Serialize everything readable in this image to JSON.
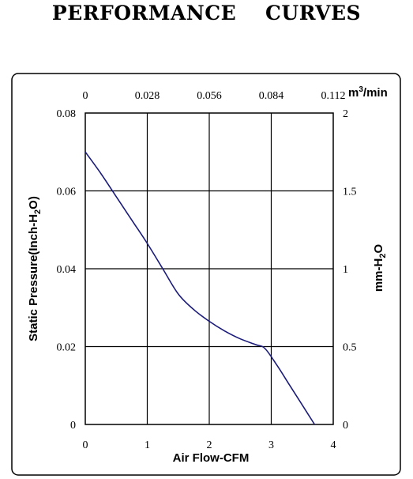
{
  "title": "PERFORMANCE    CURVES",
  "chart_data": {
    "type": "line",
    "xlabel": "Air Flow-CFM",
    "ylabel_left": "Static Pressure(Inch-H2O)",
    "ylabel_left_main": "Static Pressure(Inch-H",
    "ylabel_left_sub": "2",
    "ylabel_left_end": "O)",
    "ylabel_right_main": "mm-H",
    "ylabel_right_sub": "2",
    "ylabel_right_end": "O",
    "top_unit_main": "m",
    "top_unit_sup": "3",
    "top_unit_end": "/min",
    "xlim": [
      0,
      4
    ],
    "ylim": [
      0,
      0.08
    ],
    "x_ticks": [
      "0",
      "1",
      "2",
      "3",
      "4"
    ],
    "y_left_ticks": [
      "0",
      "0.02",
      "0.04",
      "0.06",
      "0.08"
    ],
    "y_right_ticks": [
      "0",
      "0.5",
      "1",
      "1.5",
      "2"
    ],
    "x_top_ticks": [
      "0",
      "0.028",
      "0.056",
      "0.084",
      "0.112"
    ],
    "grid": true,
    "series_color": "#1a1a7a",
    "x": [
      0,
      0.25,
      0.5,
      0.75,
      1.0,
      1.25,
      1.5,
      1.75,
      2.0,
      2.25,
      2.5,
      2.75,
      2.9,
      3.1,
      3.3,
      3.5,
      3.7
    ],
    "values": [
      0.07,
      0.0645,
      0.0585,
      0.0525,
      0.0465,
      0.04,
      0.0335,
      0.0295,
      0.0265,
      0.024,
      0.022,
      0.0205,
      0.0195,
      0.015,
      0.01,
      0.005,
      0.0
    ]
  }
}
